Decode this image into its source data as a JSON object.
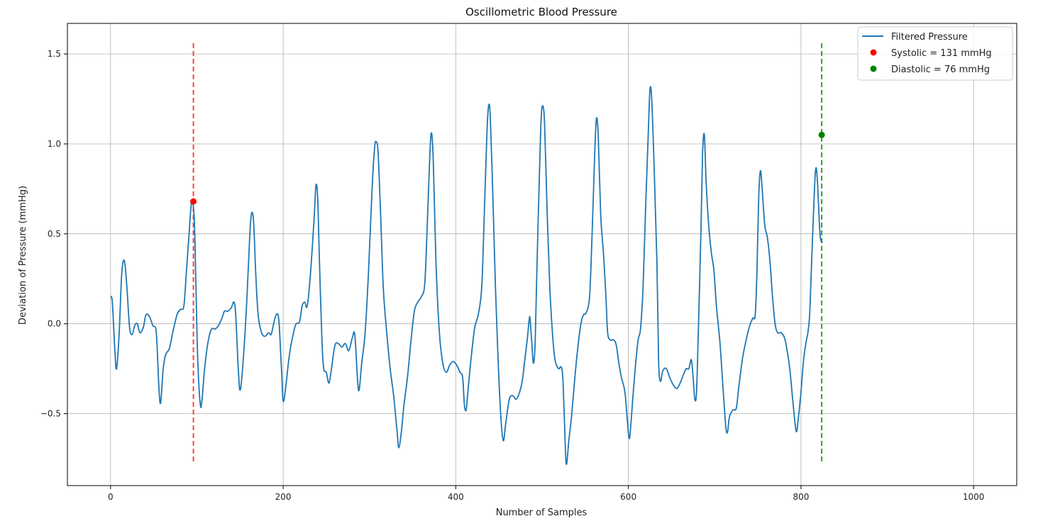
{
  "chart_data": {
    "type": "line",
    "title": "Oscillometric Blood Pressure",
    "xlabel": "Number of Samples",
    "ylabel": "Deviation of Pressure (mmHg)",
    "xlim": [
      -50,
      1050
    ],
    "ylim": [
      -0.9,
      1.67
    ],
    "xticks": [
      0,
      200,
      400,
      600,
      800,
      1000
    ],
    "yticks": [
      -0.5,
      0.0,
      0.5,
      1.0,
      1.5
    ],
    "ytick_labels": [
      "−0.5",
      "0.0",
      "0.5",
      "1.0",
      "1.5"
    ],
    "grid": true,
    "legend_position": "top-right",
    "series": [
      {
        "name": "Filtered Pressure",
        "color": "#1f77b4",
        "points": [
          [
            0,
            0.15
          ],
          [
            2,
            0.12
          ],
          [
            5,
            -0.15
          ],
          [
            7,
            -0.25
          ],
          [
            10,
            -0.05
          ],
          [
            13,
            0.28
          ],
          [
            16,
            0.35
          ],
          [
            19,
            0.2
          ],
          [
            22,
            -0.02
          ],
          [
            25,
            -0.06
          ],
          [
            28,
            -0.01
          ],
          [
            31,
            0.0
          ],
          [
            34,
            -0.05
          ],
          [
            38,
            -0.02
          ],
          [
            41,
            0.05
          ],
          [
            45,
            0.04
          ],
          [
            49,
            -0.01
          ],
          [
            53,
            -0.05
          ],
          [
            56,
            -0.35
          ],
          [
            58,
            -0.44
          ],
          [
            61,
            -0.25
          ],
          [
            64,
            -0.17
          ],
          [
            68,
            -0.14
          ],
          [
            72,
            -0.05
          ],
          [
            77,
            0.05
          ],
          [
            81,
            0.08
          ],
          [
            85,
            0.1
          ],
          [
            88,
            0.3
          ],
          [
            91,
            0.5
          ],
          [
            94,
            0.68
          ],
          [
            97,
            0.58
          ],
          [
            99,
            0.2
          ],
          [
            101,
            -0.2
          ],
          [
            104,
            -0.45
          ],
          [
            106,
            -0.42
          ],
          [
            109,
            -0.25
          ],
          [
            113,
            -0.1
          ],
          [
            117,
            -0.03
          ],
          [
            121,
            -0.03
          ],
          [
            125,
            -0.01
          ],
          [
            129,
            0.03
          ],
          [
            132,
            0.07
          ],
          [
            136,
            0.07
          ],
          [
            140,
            0.09
          ],
          [
            143,
            0.12
          ],
          [
            145,
            0.05
          ],
          [
            148,
            -0.25
          ],
          [
            150,
            -0.37
          ],
          [
            153,
            -0.25
          ],
          [
            157,
            0.05
          ],
          [
            160,
            0.35
          ],
          [
            162,
            0.55
          ],
          [
            164,
            0.62
          ],
          [
            166,
            0.55
          ],
          [
            168,
            0.3
          ],
          [
            171,
            0.05
          ],
          [
            175,
            -0.05
          ],
          [
            179,
            -0.07
          ],
          [
            183,
            -0.05
          ],
          [
            186,
            -0.06
          ],
          [
            189,
            0.0
          ],
          [
            192,
            0.05
          ],
          [
            195,
            0.02
          ],
          [
            198,
            -0.25
          ],
          [
            200,
            -0.43
          ],
          [
            203,
            -0.35
          ],
          [
            206,
            -0.22
          ],
          [
            209,
            -0.12
          ],
          [
            212,
            -0.05
          ],
          [
            215,
            0.0
          ],
          [
            219,
            0.01
          ],
          [
            222,
            0.1
          ],
          [
            225,
            0.12
          ],
          [
            228,
            0.1
          ],
          [
            232,
            0.3
          ],
          [
            236,
            0.6
          ],
          [
            238,
            0.77
          ],
          [
            240,
            0.7
          ],
          [
            242,
            0.35
          ],
          [
            245,
            -0.1
          ],
          [
            247,
            -0.25
          ],
          [
            250,
            -0.27
          ],
          [
            253,
            -0.33
          ],
          [
            256,
            -0.25
          ],
          [
            260,
            -0.12
          ],
          [
            264,
            -0.11
          ],
          [
            268,
            -0.13
          ],
          [
            272,
            -0.11
          ],
          [
            276,
            -0.15
          ],
          [
            280,
            -0.08
          ],
          [
            283,
            -0.06
          ],
          [
            286,
            -0.3
          ],
          [
            288,
            -0.37
          ],
          [
            291,
            -0.22
          ],
          [
            295,
            -0.05
          ],
          [
            299,
            0.3
          ],
          [
            303,
            0.75
          ],
          [
            306,
            0.98
          ],
          [
            308,
            1.01
          ],
          [
            310,
            0.95
          ],
          [
            313,
            0.6
          ],
          [
            316,
            0.2
          ],
          [
            320,
            -0.05
          ],
          [
            324,
            -0.25
          ],
          [
            328,
            -0.4
          ],
          [
            332,
            -0.6
          ],
          [
            334,
            -0.69
          ],
          [
            337,
            -0.6
          ],
          [
            340,
            -0.45
          ],
          [
            344,
            -0.3
          ],
          [
            348,
            -0.1
          ],
          [
            352,
            0.07
          ],
          [
            356,
            0.12
          ],
          [
            360,
            0.15
          ],
          [
            364,
            0.22
          ],
          [
            367,
            0.55
          ],
          [
            370,
            0.95
          ],
          [
            372,
            1.06
          ],
          [
            374,
            0.9
          ],
          [
            377,
            0.35
          ],
          [
            381,
            -0.05
          ],
          [
            385,
            -0.22
          ],
          [
            389,
            -0.27
          ],
          [
            393,
            -0.23
          ],
          [
            397,
            -0.21
          ],
          [
            401,
            -0.23
          ],
          [
            405,
            -0.27
          ],
          [
            408,
            -0.3
          ],
          [
            410,
            -0.45
          ],
          [
            412,
            -0.48
          ],
          [
            414,
            -0.38
          ],
          [
            418,
            -0.18
          ],
          [
            422,
            -0.02
          ],
          [
            426,
            0.05
          ],
          [
            430,
            0.2
          ],
          [
            433,
            0.6
          ],
          [
            436,
            1.05
          ],
          [
            438,
            1.21
          ],
          [
            440,
            1.15
          ],
          [
            443,
            0.7
          ],
          [
            446,
            0.2
          ],
          [
            449,
            -0.2
          ],
          [
            452,
            -0.5
          ],
          [
            455,
            -0.65
          ],
          [
            458,
            -0.55
          ],
          [
            462,
            -0.42
          ],
          [
            466,
            -0.4
          ],
          [
            470,
            -0.42
          ],
          [
            474,
            -0.38
          ],
          [
            477,
            -0.32
          ],
          [
            480,
            -0.2
          ],
          [
            483,
            -0.08
          ],
          [
            485,
            0.02
          ],
          [
            486,
            0.03
          ],
          [
            488,
            -0.1
          ],
          [
            490,
            -0.22
          ],
          [
            492,
            -0.1
          ],
          [
            494,
            0.3
          ],
          [
            497,
            0.85
          ],
          [
            499,
            1.15
          ],
          [
            501,
            1.21
          ],
          [
            503,
            1.1
          ],
          [
            506,
            0.6
          ],
          [
            509,
            0.2
          ],
          [
            512,
            -0.05
          ],
          [
            515,
            -0.2
          ],
          [
            519,
            -0.25
          ],
          [
            522,
            -0.24
          ],
          [
            524,
            -0.3
          ],
          [
            526,
            -0.55
          ],
          [
            528,
            -0.78
          ],
          [
            531,
            -0.65
          ],
          [
            534,
            -0.52
          ],
          [
            538,
            -0.3
          ],
          [
            541,
            -0.15
          ],
          [
            545,
            0.0
          ],
          [
            548,
            0.05
          ],
          [
            551,
            0.06
          ],
          [
            555,
            0.15
          ],
          [
            558,
            0.5
          ],
          [
            561,
            0.95
          ],
          [
            563,
            1.14
          ],
          [
            565,
            1.05
          ],
          [
            568,
            0.6
          ],
          [
            571,
            0.4
          ],
          [
            574,
            0.15
          ],
          [
            576,
            -0.05
          ],
          [
            579,
            -0.09
          ],
          [
            583,
            -0.09
          ],
          [
            586,
            -0.12
          ],
          [
            589,
            -0.22
          ],
          [
            592,
            -0.3
          ],
          [
            596,
            -0.38
          ],
          [
            599,
            -0.55
          ],
          [
            601,
            -0.64
          ],
          [
            603,
            -0.55
          ],
          [
            607,
            -0.3
          ],
          [
            611,
            -0.1
          ],
          [
            614,
            -0.03
          ],
          [
            617,
            0.2
          ],
          [
            620,
            0.65
          ],
          [
            623,
            1.05
          ],
          [
            625,
            1.3
          ],
          [
            627,
            1.25
          ],
          [
            630,
            0.85
          ],
          [
            633,
            0.35
          ],
          [
            635,
            -0.2
          ],
          [
            637,
            -0.32
          ],
          [
            640,
            -0.26
          ],
          [
            644,
            -0.25
          ],
          [
            648,
            -0.3
          ],
          [
            652,
            -0.34
          ],
          [
            656,
            -0.36
          ],
          [
            660,
            -0.33
          ],
          [
            664,
            -0.28
          ],
          [
            667,
            -0.25
          ],
          [
            670,
            -0.25
          ],
          [
            673,
            -0.2
          ],
          [
            675,
            -0.3
          ],
          [
            677,
            -0.42
          ],
          [
            679,
            -0.38
          ],
          [
            681,
            -0.05
          ],
          [
            684,
            0.5
          ],
          [
            686,
            0.95
          ],
          [
            688,
            1.05
          ],
          [
            690,
            0.8
          ],
          [
            693,
            0.55
          ],
          [
            696,
            0.4
          ],
          [
            699,
            0.3
          ],
          [
            702,
            0.1
          ],
          [
            706,
            -0.1
          ],
          [
            710,
            -0.38
          ],
          [
            713,
            -0.58
          ],
          [
            715,
            -0.6
          ],
          [
            717,
            -0.52
          ],
          [
            721,
            -0.48
          ],
          [
            725,
            -0.47
          ],
          [
            728,
            -0.35
          ],
          [
            732,
            -0.2
          ],
          [
            736,
            -0.1
          ],
          [
            740,
            -0.02
          ],
          [
            744,
            0.03
          ],
          [
            747,
            0.05
          ],
          [
            749,
            0.3
          ],
          [
            751,
            0.7
          ],
          [
            753,
            0.85
          ],
          [
            755,
            0.75
          ],
          [
            758,
            0.55
          ],
          [
            761,
            0.48
          ],
          [
            764,
            0.35
          ],
          [
            767,
            0.15
          ],
          [
            770,
            0.0
          ],
          [
            773,
            -0.05
          ],
          [
            777,
            -0.05
          ],
          [
            781,
            -0.08
          ],
          [
            784,
            -0.15
          ],
          [
            787,
            -0.25
          ],
          [
            790,
            -0.4
          ],
          [
            793,
            -0.55
          ],
          [
            795,
            -0.6
          ],
          [
            797,
            -0.52
          ],
          [
            800,
            -0.38
          ],
          [
            803,
            -0.2
          ],
          [
            806,
            -0.1
          ],
          [
            808,
            -0.05
          ],
          [
            810,
            0.05
          ],
          [
            812,
            0.3
          ],
          [
            815,
            0.68
          ],
          [
            817,
            0.86
          ],
          [
            819,
            0.8
          ],
          [
            822,
            0.5
          ],
          [
            825,
            0.45
          ]
        ]
      }
    ],
    "markers": [
      {
        "name": "Systolic = 131 mmHg",
        "color": "#ff0000",
        "x": 96,
        "y": 0.68,
        "vline_color": "#ff4040",
        "vline_range": [
          -0.78,
          1.56
        ]
      },
      {
        "name": "Diastolic = 76 mmHg",
        "color": "#008000",
        "x": 824,
        "y": 1.05,
        "vline_color": "#2ca02c",
        "vline_range": [
          -0.78,
          1.56
        ]
      }
    ]
  }
}
